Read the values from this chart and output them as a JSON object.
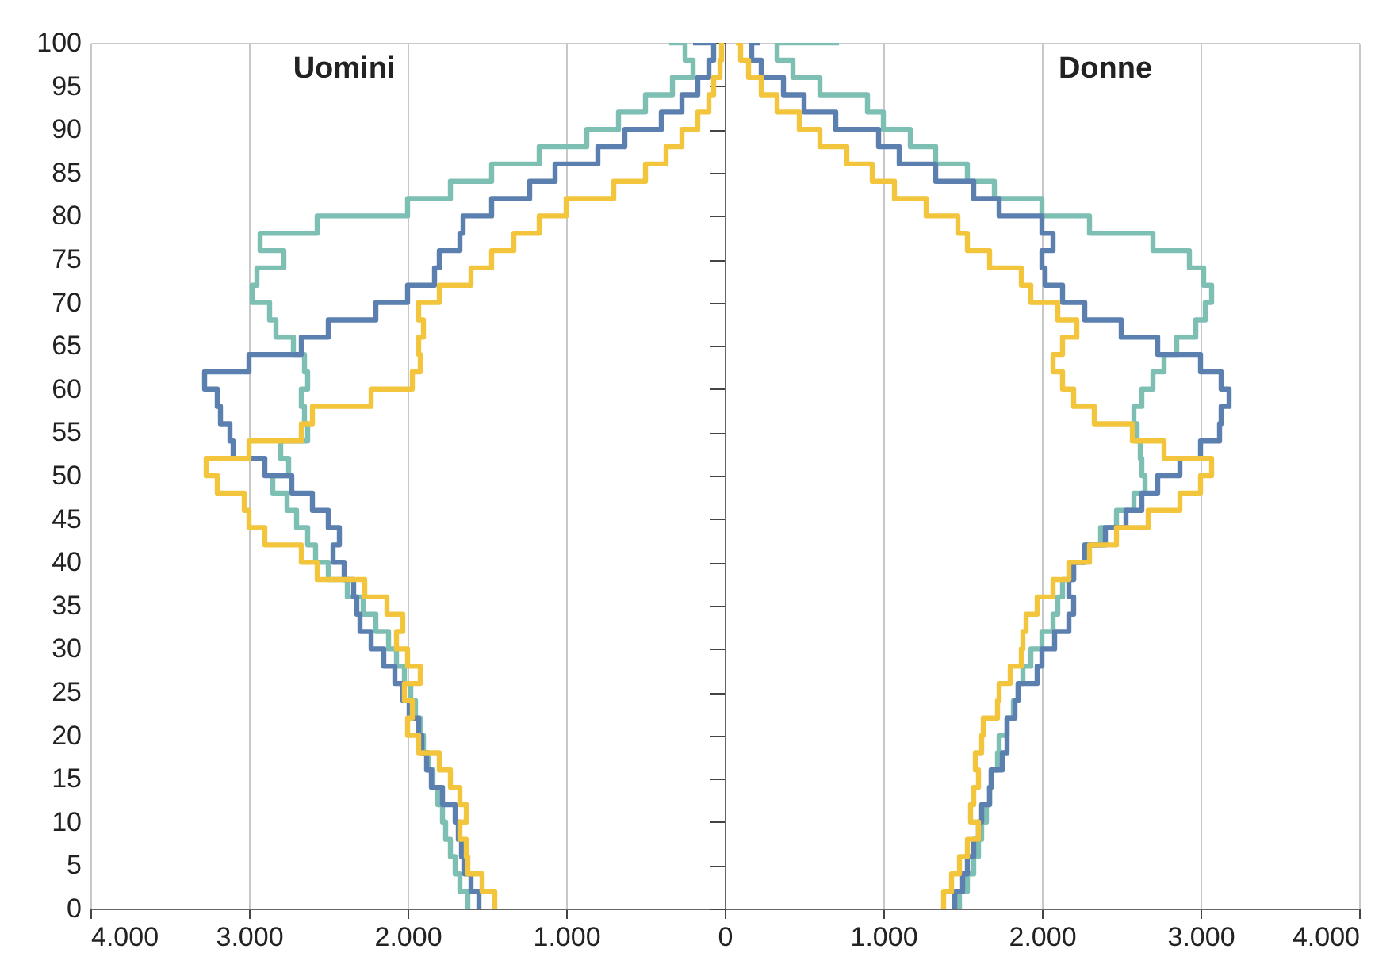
{
  "chart_data": {
    "type": "step",
    "orientation": "horizontal",
    "annotations": [
      "Uomini",
      "Donne"
    ],
    "x": [
      0,
      2,
      4,
      6,
      8,
      10,
      12,
      14,
      16,
      18,
      20,
      22,
      24,
      26,
      28,
      30,
      32,
      34,
      36,
      38,
      40,
      42,
      44,
      46,
      48,
      50,
      52,
      54,
      56,
      58,
      60,
      62,
      64,
      66,
      68,
      70,
      72,
      74,
      76,
      78,
      80,
      82,
      84,
      86,
      88,
      90,
      92,
      94,
      96,
      98,
      100
    ],
    "series": [
      {
        "color": "#7dbfb3",
        "values": [
          -1620,
          -1670,
          -1700,
          -1730,
          -1760,
          -1780,
          -1810,
          -1840,
          -1870,
          -1900,
          -1920,
          -1950,
          -1980,
          -2020,
          -2070,
          -2120,
          -2200,
          -2280,
          -2380,
          -2500,
          -2580,
          -2630,
          -2700,
          -2760,
          -2850,
          -2750,
          -2800,
          -2630,
          -2650,
          -2670,
          -2630,
          -2650,
          -2720,
          -2830,
          -2870,
          -2980,
          -2950,
          -2780,
          -2930,
          -2570,
          -2000,
          -1730,
          -1470,
          -1170,
          -870,
          -670,
          -500,
          -330,
          -200,
          -250,
          -350
        ]
      },
      {
        "color": "#5b7fae",
        "values": [
          -1550,
          -1600,
          -1640,
          -1660,
          -1680,
          -1700,
          -1780,
          -1850,
          -1880,
          -1910,
          -1930,
          -1990,
          -2030,
          -2080,
          -2150,
          -2230,
          -2300,
          -2320,
          -2340,
          -2400,
          -2470,
          -2430,
          -2500,
          -2600,
          -2730,
          -2900,
          -3100,
          -3120,
          -3180,
          -3200,
          -3280,
          -3000,
          -2670,
          -2500,
          -2200,
          -2000,
          -1830,
          -1800,
          -1670,
          -1650,
          -1470,
          -1230,
          -1070,
          -800,
          -630,
          -400,
          -270,
          -170,
          -100,
          -70,
          -200
        ]
      },
      {
        "color": "#f2c53d",
        "values": [
          -1450,
          -1530,
          -1620,
          -1630,
          -1670,
          -1630,
          -1670,
          -1730,
          -1800,
          -1930,
          -2000,
          -1970,
          -2020,
          -1920,
          -2000,
          -2070,
          -2030,
          -2130,
          -2270,
          -2570,
          -2670,
          -2900,
          -3000,
          -3030,
          -3200,
          -3270,
          -3000,
          -2670,
          -2600,
          -2230,
          -1970,
          -1920,
          -1930,
          -1900,
          -1930,
          -1800,
          -1600,
          -1470,
          -1330,
          -1170,
          -1000,
          -700,
          -500,
          -370,
          -270,
          -170,
          -100,
          -70,
          -30,
          -20,
          -30
        ]
      },
      {
        "color": "#7dbfb3",
        "values": [
          1480,
          1530,
          1570,
          1600,
          1620,
          1650,
          1670,
          1680,
          1720,
          1730,
          1780,
          1820,
          1850,
          1880,
          1930,
          2000,
          2070,
          2100,
          2130,
          2200,
          2270,
          2370,
          2470,
          2580,
          2650,
          2630,
          2620,
          2600,
          2580,
          2630,
          2700,
          2770,
          2850,
          2970,
          3030,
          3070,
          3020,
          2930,
          2700,
          2300,
          2000,
          1700,
          1530,
          1330,
          1170,
          1000,
          900,
          600,
          430,
          330,
          720
        ]
      },
      {
        "color": "#5b7fae",
        "values": [
          1450,
          1500,
          1530,
          1570,
          1600,
          1620,
          1670,
          1680,
          1750,
          1780,
          1780,
          1830,
          1850,
          1970,
          2000,
          2080,
          2170,
          2200,
          2170,
          2200,
          2270,
          2400,
          2530,
          2630,
          2730,
          2870,
          3000,
          3120,
          3130,
          3180,
          3130,
          3000,
          2730,
          2500,
          2270,
          2130,
          2020,
          2000,
          2070,
          2000,
          1730,
          1570,
          1330,
          1100,
          970,
          700,
          500,
          370,
          230,
          170,
          220
        ]
      },
      {
        "color": "#f2c53d",
        "values": [
          1380,
          1430,
          1480,
          1530,
          1600,
          1550,
          1570,
          1600,
          1580,
          1620,
          1630,
          1720,
          1730,
          1800,
          1870,
          1880,
          1900,
          1970,
          2070,
          2170,
          2300,
          2470,
          2670,
          2870,
          3000,
          3070,
          2770,
          2570,
          2330,
          2200,
          2130,
          2070,
          2130,
          2220,
          2100,
          1930,
          1870,
          1670,
          1530,
          1470,
          1270,
          1070,
          930,
          770,
          600,
          470,
          330,
          230,
          150,
          100,
          70
        ]
      }
    ],
    "xlim": [
      -4000,
      4000
    ],
    "xticks": [
      {
        "value": -4000,
        "label": "4.000"
      },
      {
        "value": -3000,
        "label": "3.000"
      },
      {
        "value": -2000,
        "label": "2.000"
      },
      {
        "value": -1000,
        "label": "1.000"
      },
      0,
      {
        "value": 1000,
        "label": "1.000"
      },
      {
        "value": 2000,
        "label": "2.000"
      },
      {
        "value": 3000,
        "label": "3.000"
      },
      {
        "value": 4000,
        "label": "4.000"
      }
    ],
    "ylim": [
      0,
      100
    ],
    "yticks": [
      0,
      5,
      10,
      15,
      20,
      25,
      30,
      35,
      40,
      45,
      50,
      55,
      60,
      65,
      70,
      75,
      80,
      85,
      90,
      95,
      100
    ],
    "grid": "x"
  }
}
